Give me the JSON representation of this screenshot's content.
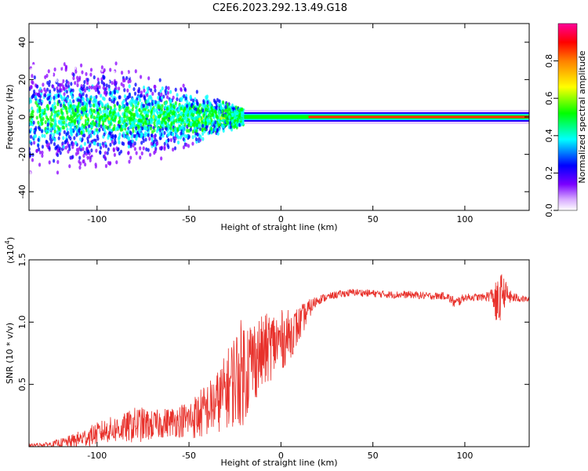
{
  "title": "C2E6.2023.292.13.49.G18",
  "colors": {
    "snr_line": "#e8312b",
    "plot_bg": "#ffffff",
    "frame": "#000000"
  },
  "chart_data": [
    {
      "type": "heatmap",
      "xlabel": "Height of straight line (km)",
      "ylabel": "Frequency (Hz)",
      "xlim": [
        -137,
        135
      ],
      "ylim": [
        -50,
        50
      ],
      "x_ticks": [
        -100,
        -50,
        0,
        50,
        100
      ],
      "x_tick_labels": [
        "-100",
        "-50",
        "0",
        "50",
        "100"
      ],
      "y_ticks": [
        -40,
        -20,
        0,
        20,
        40
      ],
      "y_tick_labels": [
        "-40",
        "-20",
        "0",
        "20",
        "40"
      ],
      "colorbar": {
        "label": "Normalized spectral amplitude",
        "range": [
          0,
          1
        ],
        "ticks": [
          0,
          0.2,
          0.4,
          0.6,
          0.8
        ],
        "tick_labels": [
          "0.0",
          "0.2",
          "0.4",
          "0.6",
          "0.8"
        ],
        "colormap": [
          "#ffffff",
          "#8a00ff",
          "#0000ff",
          "#00ffff",
          "#00ff00",
          "#ffff00",
          "#ff8000",
          "#ff0000",
          "#ff00a0"
        ]
      },
      "description_values": {
        "carrier_frequency_hz": 0,
        "spread_region_height_km": [
          -137,
          -20
        ],
        "steady_region_height_km": [
          -20,
          135
        ]
      }
    },
    {
      "type": "line",
      "xlabel": "Height of straight line (km)",
      "ylabel": "SNR (10 * v/v)",
      "y_scale_label": "(x10",
      "y_scale_exponent": "4",
      "xlim": [
        -137,
        135
      ],
      "ylim": [
        0,
        1.5
      ],
      "x_ticks": [
        -100,
        -50,
        0,
        50,
        100
      ],
      "x_tick_labels": [
        "-100",
        "-50",
        "0",
        "50",
        "100"
      ],
      "y_ticks": [
        0.5,
        1.0,
        1.5
      ],
      "y_tick_labels": [
        "0.5",
        "1.0",
        "1.5"
      ],
      "series": [
        {
          "x": [
            -137,
            -125,
            -115,
            -105,
            -95,
            -85,
            -78,
            -70,
            -60,
            -50,
            -45,
            -40,
            -35,
            -30,
            -25,
            -20,
            -15,
            -10,
            -5,
            0,
            5,
            10,
            15,
            20,
            25,
            30,
            40,
            50,
            60,
            70,
            80,
            90,
            95,
            100,
            110,
            115,
            118,
            120,
            125,
            130,
            135
          ],
          "y": [
            0.01,
            0.02,
            0.04,
            0.08,
            0.13,
            0.15,
            0.18,
            0.17,
            0.2,
            0.22,
            0.25,
            0.3,
            0.35,
            0.45,
            0.55,
            0.62,
            0.7,
            0.75,
            0.82,
            0.85,
            0.9,
            0.98,
            1.1,
            1.18,
            1.2,
            1.22,
            1.24,
            1.23,
            1.22,
            1.22,
            1.21,
            1.21,
            1.15,
            1.2,
            1.2,
            1.22,
            1.1,
            1.25,
            1.2,
            1.19,
            1.18
          ],
          "noise": [
            0.01,
            0.02,
            0.05,
            0.08,
            0.1,
            0.12,
            0.15,
            0.12,
            0.12,
            0.15,
            0.2,
            0.22,
            0.25,
            0.3,
            0.4,
            0.45,
            0.35,
            0.3,
            0.28,
            0.25,
            0.2,
            0.15,
            0.08,
            0.04,
            0.03,
            0.03,
            0.03,
            0.03,
            0.03,
            0.03,
            0.03,
            0.03,
            0.05,
            0.03,
            0.03,
            0.06,
            0.25,
            0.15,
            0.05,
            0.03,
            0.02
          ]
        }
      ]
    }
  ]
}
